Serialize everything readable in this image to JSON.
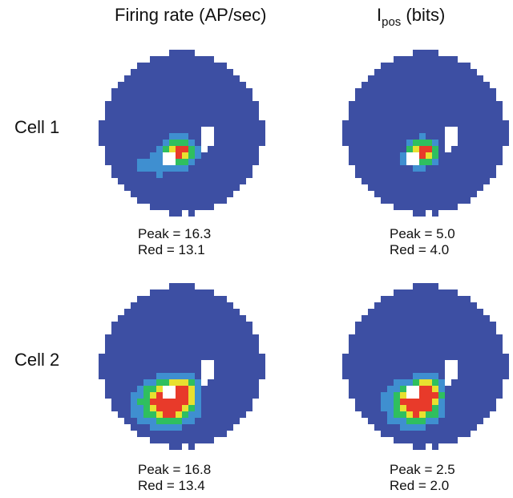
{
  "columns": [
    {
      "title": "Firing rate (AP/sec)"
    },
    {
      "title_main": "I",
      "title_sub": "pos",
      "title_rest": " (bits)"
    }
  ],
  "rows": [
    {
      "label": "Cell 1",
      "panels": [
        {
          "peak": "Peak = 16.3",
          "red": "Red = 13.1"
        },
        {
          "peak": "Peak = 5.0",
          "red": "Red = 4.0"
        }
      ]
    },
    {
      "label": "Cell 2",
      "panels": [
        {
          "peak": "Peak = 16.8",
          "red": "Red = 13.4"
        },
        {
          "peak": "Peak = 2.5",
          "red": "Red = 2.0"
        }
      ]
    }
  ],
  "colors": {
    "background_field": "#3d4fa3",
    "low": "#3f8fd0",
    "mid": "#2fbf5f",
    "high": "#e8e030",
    "peak": "#e83a2a"
  }
}
